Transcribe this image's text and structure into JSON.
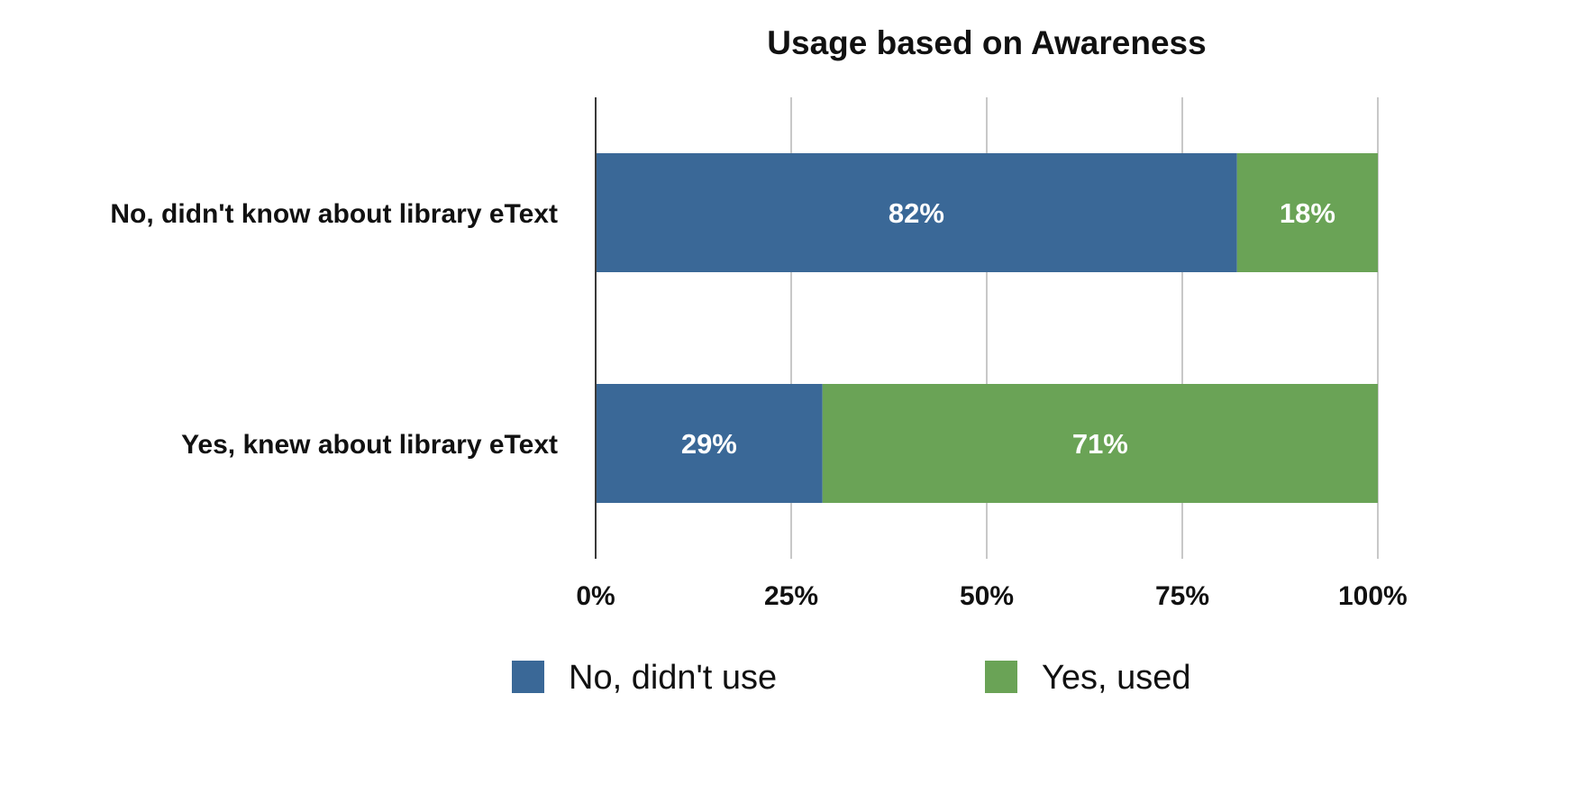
{
  "chart_data": {
    "type": "bar",
    "orientation": "horizontal",
    "stacked": true,
    "title": "Usage based on Awareness",
    "categories": [
      "No, didn't know about library eText",
      "Yes, knew about library eText"
    ],
    "series": [
      {
        "name": "No, didn't use",
        "color": "#3a6897",
        "values": [
          82,
          29
        ],
        "labels": [
          "82%",
          "29%"
        ]
      },
      {
        "name": "Yes, used",
        "color": "#6aa356",
        "values": [
          18,
          71
        ],
        "labels": [
          "18%",
          "71%"
        ]
      }
    ],
    "xlim": [
      0,
      100
    ],
    "x_ticks": [
      0,
      25,
      50,
      75,
      100
    ],
    "x_tick_labels": [
      "0%",
      "25%",
      "50%",
      "75%",
      "100%"
    ],
    "xlabel": "",
    "ylabel": "",
    "grid": "vertical",
    "legend_position": "bottom"
  }
}
